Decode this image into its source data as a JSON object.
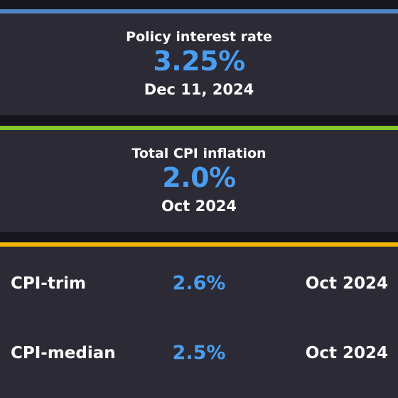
{
  "colors": {
    "background": "#17161f",
    "card": "#2b2a35",
    "value_blue": "#4a9df0",
    "accent_policy": "#4f86c6",
    "accent_cpi": "#7fc72a",
    "accent_core": "#f2b705"
  },
  "policy_rate": {
    "label": "Policy interest rate",
    "value": "3.25%",
    "date": "Dec 11, 2024"
  },
  "total_cpi": {
    "label": "Total CPI inflation",
    "value": "2.0%",
    "date": "Oct 2024"
  },
  "core_measures": [
    {
      "name": "CPI-trim",
      "value": "2.6%",
      "date": "Oct 2024"
    },
    {
      "name": "CPI-median",
      "value": "2.5%",
      "date": "Oct 2024"
    }
  ]
}
